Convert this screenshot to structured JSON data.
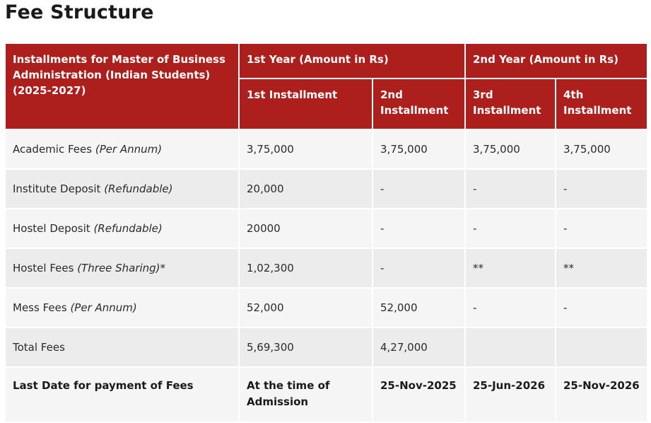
{
  "title": "Fee Structure",
  "table": {
    "corner_header": "Installments for Master of Business Administration (Indian Students) (2025-2027)",
    "year_headers": [
      "1st Year (Amount in Rs)",
      "2nd Year (Amount in Rs)"
    ],
    "installment_headers": [
      "1st Installment",
      "2nd Installment",
      "3rd Installment",
      "4th Installment"
    ],
    "rows": [
      {
        "label": "Academic Fees",
        "note": "(Per Annum)",
        "values": [
          "3,75,000",
          "3,75,000",
          "3,75,000",
          "3,75,000"
        ]
      },
      {
        "label": "Institute Deposit",
        "note": "(Refundable)",
        "values": [
          "20,000",
          "-",
          "-",
          "-"
        ]
      },
      {
        "label": "Hostel Deposit",
        "note": "(Refundable)",
        "values": [
          "20000",
          "-",
          "-",
          "-"
        ]
      },
      {
        "label": "Hostel Fees",
        "note": "(Three Sharing)*",
        "values": [
          "1,02,300",
          "-",
          "**",
          "**"
        ]
      },
      {
        "label": "Mess Fees",
        "note": "(Per Annum)",
        "values": [
          "52,000",
          "52,000",
          "-",
          "-"
        ]
      },
      {
        "label": "Total Fees",
        "note": "",
        "values": [
          "5,69,300",
          "4,27,000",
          "",
          ""
        ]
      }
    ],
    "last_row": {
      "label": "Last Date for payment of Fees",
      "values": [
        "At the time of Admission",
        "25-Nov-2025",
        "25-Jun-2026",
        "25-Nov-2026"
      ]
    }
  },
  "colors": {
    "header_bg": "#ad1f1c",
    "row_light": "#f5f5f5",
    "row_dark": "#ececec"
  }
}
